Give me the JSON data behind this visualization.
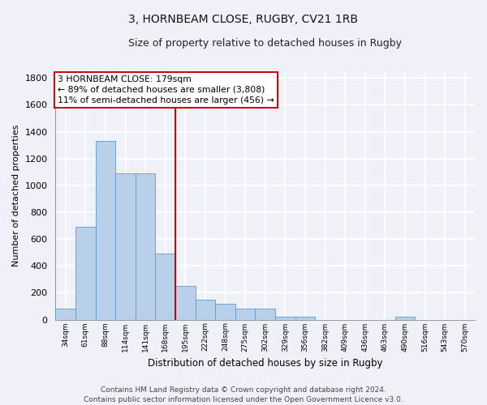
{
  "title1": "3, HORNBEAM CLOSE, RUGBY, CV21 1RB",
  "title2": "Size of property relative to detached houses in Rugby",
  "xlabel": "Distribution of detached houses by size in Rugby",
  "ylabel": "Number of detached properties",
  "categories": [
    "34sqm",
    "61sqm",
    "88sqm",
    "114sqm",
    "141sqm",
    "168sqm",
    "195sqm",
    "222sqm",
    "248sqm",
    "275sqm",
    "302sqm",
    "329sqm",
    "356sqm",
    "382sqm",
    "409sqm",
    "436sqm",
    "463sqm",
    "490sqm",
    "516sqm",
    "543sqm",
    "570sqm"
  ],
  "values": [
    80,
    690,
    1330,
    1090,
    1090,
    490,
    250,
    150,
    120,
    80,
    80,
    20,
    20,
    0,
    0,
    0,
    0,
    20,
    0,
    0,
    0
  ],
  "bar_color": "#b8d0e8",
  "bar_edge_color": "#5b9bd5",
  "vline_x_idx": 5.5,
  "vline_color": "#cc0000",
  "annotation_line1": "3 HORNBEAM CLOSE: 179sqm",
  "annotation_line2": "← 89% of detached houses are smaller (3,808)",
  "annotation_line3": "11% of semi-detached houses are larger (456) →",
  "annotation_box_color": "white",
  "annotation_box_edge": "#cc0000",
  "footer1": "Contains HM Land Registry data © Crown copyright and database right 2024.",
  "footer2": "Contains public sector information licensed under the Open Government Licence v3.0.",
  "ylim_max": 1850,
  "yticks": [
    0,
    200,
    400,
    600,
    800,
    1000,
    1200,
    1400,
    1600,
    1800
  ],
  "bg_color": "#eef2f8",
  "grid_color": "white",
  "title1_fontsize": 10,
  "title2_fontsize": 9,
  "ann_fontsize": 7.8,
  "ylabel_fontsize": 8,
  "xlabel_fontsize": 8.5,
  "xtick_fontsize": 6.5,
  "ytick_fontsize": 8,
  "footer_fontsize": 6.5
}
